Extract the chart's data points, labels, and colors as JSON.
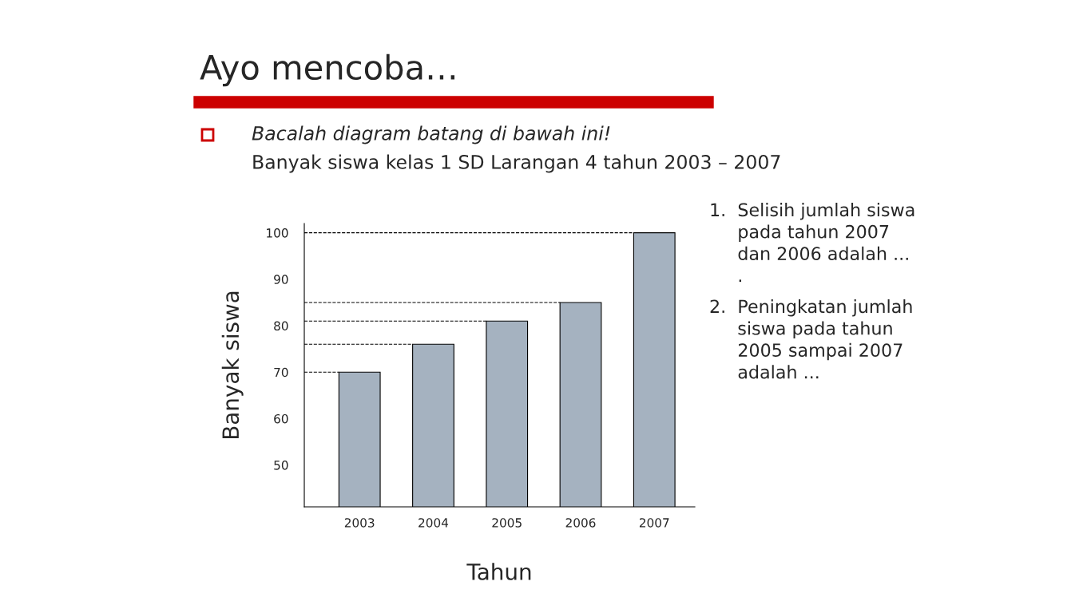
{
  "chart_data": {
    "type": "bar",
    "title": "Ayo mencoba…",
    "subtitle": "Bacalah diagram batang di bawah ini!",
    "xlabel": "Tahun",
    "ylabel": "Banyak siswa",
    "categories": [
      "2003",
      "2004",
      "2005",
      "2006",
      "2007"
    ],
    "values": [
      70,
      76,
      81,
      85,
      100
    ],
    "color": "#a5b2c0",
    "ylim": [
      41,
      102
    ],
    "yticks": [
      50,
      60,
      70,
      80,
      90,
      100
    ],
    "grid": false,
    "ref_lines": [
      {
        "axis": "y",
        "value": 70,
        "line_style": "dashed"
      },
      {
        "axis": "y",
        "value": 76,
        "line_style": "dashed"
      },
      {
        "axis": "y",
        "value": 81,
        "line_style": "dashed"
      },
      {
        "axis": "y",
        "value": 85,
        "line_style": "dashed"
      },
      {
        "axis": "y",
        "value": 100,
        "line_style": "dashed"
      }
    ],
    "annotations": [
      "Banyak siswa kelas 1 SD Larangan 4 tahun 2003 – 2007",
      "1.  Selisih jumlah siswa\n     pada tahun 2007\n     dan 2006 adalah ...\n     .",
      "2.  Peningkatan jumlah\n     siswa pada tahun\n     2005 sampai 2007\n     adalah ..."
    ]
  }
}
